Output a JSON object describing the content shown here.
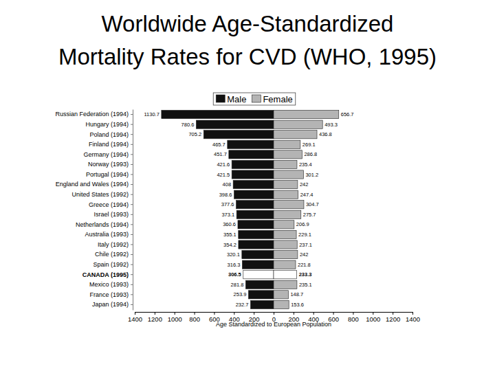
{
  "chart_data": {
    "type": "bar",
    "orientation": "horizontal",
    "title": "Worldwide Age-Standardized\nMortality Rates for CVD (WHO, 1995)",
    "xlabel": "Age Standardized to European Population",
    "categories": [
      "Russian Federation (1994)",
      "Hungary (1994)",
      "Poland (1994)",
      "Finland (1994)",
      "Germany (1994)",
      "Norway (1993)",
      "Portugal (1994)",
      "England and Wales (1994)",
      "United States (1992)",
      "Greece (1994)",
      "Israel (1993)",
      "Netherlands (1994)",
      "Australia (1993)",
      "Italy (1992)",
      "Chile (1992)",
      "Spain (1992)",
      "CANADA (1995)",
      "Mexico (1993)",
      "France (1993)",
      "Japan (1994)"
    ],
    "series": [
      {
        "name": "Male",
        "color": "#111111",
        "colors": [
          "#111111",
          "#111111",
          "#111111",
          "#111111",
          "#111111",
          "#111111",
          "#111111",
          "#111111",
          "#111111",
          "#111111",
          "#111111",
          "#111111",
          "#111111",
          "#111111",
          "#111111",
          "#111111",
          "#ffffff",
          "#111111",
          "#111111",
          "#111111"
        ],
        "values": [
          1130.7,
          780.6,
          705.2,
          465.7,
          451.7,
          421.6,
          421.5,
          408,
          398.6,
          377.6,
          373.1,
          360.6,
          355.1,
          354.2,
          320.1,
          316.3,
          306.5,
          281.8,
          253.9,
          232.7
        ]
      },
      {
        "name": "Female",
        "color": "#b4b4b4",
        "colors": [
          "#b4b4b4",
          "#b4b4b4",
          "#b4b4b4",
          "#b4b4b4",
          "#b4b4b4",
          "#b4b4b4",
          "#b4b4b4",
          "#b4b4b4",
          "#b4b4b4",
          "#b4b4b4",
          "#b4b4b4",
          "#b4b4b4",
          "#b4b4b4",
          "#b4b4b4",
          "#b4b4b4",
          "#b4b4b4",
          "#ffffff",
          "#b4b4b4",
          "#b4b4b4",
          "#b4b4b4"
        ],
        "values": [
          656.7,
          493.3,
          436.8,
          269.1,
          286.8,
          235.4,
          301.2,
          242,
          247.4,
          304.7,
          275.7,
          206.9,
          229.1,
          237.1,
          242,
          221.8,
          233.3,
          235.1,
          148.7,
          153.6
        ]
      }
    ],
    "xlim": [
      0,
      1400
    ],
    "xticks": [
      0,
      200,
      400,
      600,
      800,
      1000,
      1200,
      1400
    ],
    "data_labels": true,
    "legend": "top"
  }
}
